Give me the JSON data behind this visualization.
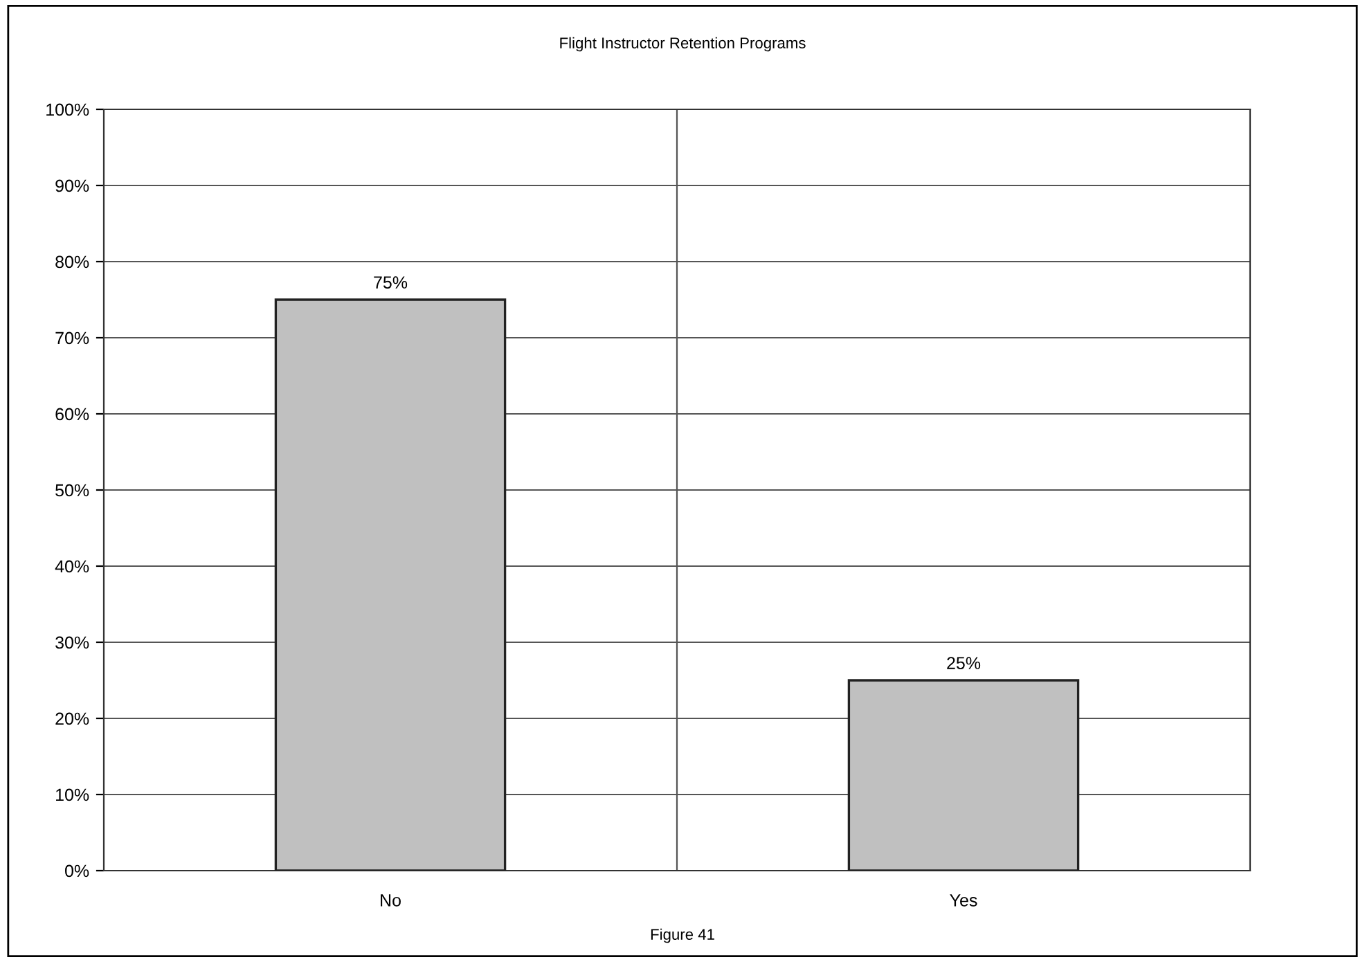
{
  "chart_data": {
    "type": "bar",
    "title": "Flight Instructor Retention Programs",
    "categories": [
      "No",
      "Yes"
    ],
    "values": [
      75,
      25
    ],
    "color": "#c0c0c0",
    "value_labels": [
      "75%",
      "25%"
    ],
    "ylim": [
      0,
      100
    ],
    "yticks": [
      {
        "value": 0,
        "label": "0%"
      },
      {
        "value": 10,
        "label": "10%"
      },
      {
        "value": 20,
        "label": "20%"
      },
      {
        "value": 30,
        "label": "30%"
      },
      {
        "value": 40,
        "label": "40%"
      },
      {
        "value": 50,
        "label": "50%"
      },
      {
        "value": 60,
        "label": "60%"
      },
      {
        "value": 70,
        "label": "70%"
      },
      {
        "value": 80,
        "label": "80%"
      },
      {
        "value": 90,
        "label": "90%"
      },
      {
        "value": 100,
        "label": "100%"
      }
    ],
    "grid": true,
    "annotations": [
      "Figure 41"
    ]
  }
}
